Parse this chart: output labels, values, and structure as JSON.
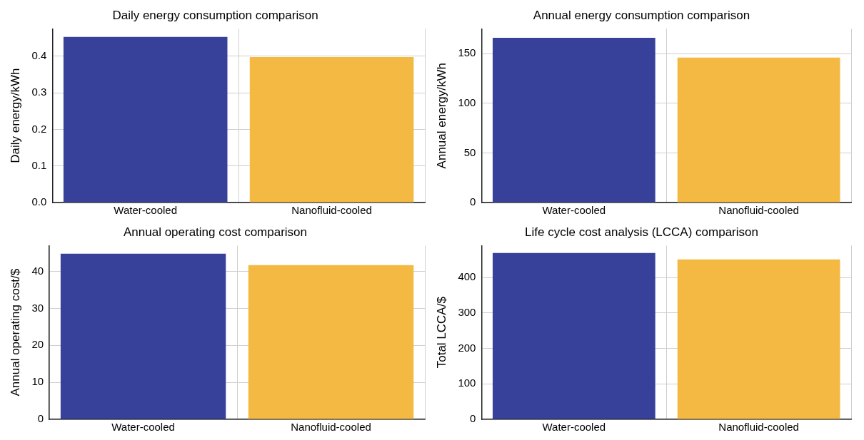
{
  "chart_data": [
    {
      "type": "bar",
      "title": "Daily energy consumption comparison",
      "ylabel": "Daily energy/kWh",
      "categories": [
        "Water-cooled",
        "Nanofluid-cooled"
      ],
      "values": [
        0.453,
        0.398
      ],
      "colors": [
        "#38419a",
        "#f4b942"
      ],
      "ylim": [
        0,
        0.475
      ],
      "yticks": [
        {
          "value": 0,
          "label": "0.0"
        },
        0.1,
        0.2,
        0.3,
        0.4
      ],
      "grid": true,
      "legend": false
    },
    {
      "type": "bar",
      "title": "Annual energy consumption comparison",
      "ylabel": "Annual energy/kWh",
      "categories": [
        "Water-cooled",
        "Nanofluid-cooled"
      ],
      "values": [
        166,
        146
      ],
      "colors": [
        "#38419a",
        "#f4b942"
      ],
      "ylim": [
        0,
        175
      ],
      "yticks": [
        0,
        50,
        100,
        150
      ],
      "grid": true,
      "legend": false
    },
    {
      "type": "bar",
      "title": "Annual operating cost comparison",
      "ylabel": "Annual operating cost/$",
      "categories": [
        "Water-cooled",
        "Nanofluid-cooled"
      ],
      "values": [
        44.8,
        41.7
      ],
      "colors": [
        "#38419a",
        "#f4b942"
      ],
      "ylim": [
        0,
        47
      ],
      "yticks": [
        0,
        10,
        20,
        30,
        40
      ],
      "grid": true,
      "legend": false
    },
    {
      "type": "bar",
      "title": "Life cycle cost analysis (LCCA) comparison",
      "ylabel": "Total LCCA/$",
      "categories": [
        "Water-cooled",
        "Nanofluid-cooled"
      ],
      "values": [
        469,
        451
      ],
      "colors": [
        "#38419a",
        "#f4b942"
      ],
      "ylim": [
        0,
        490
      ],
      "yticks": [
        0,
        100,
        200,
        300,
        400
      ],
      "grid": true,
      "legend": false
    }
  ]
}
